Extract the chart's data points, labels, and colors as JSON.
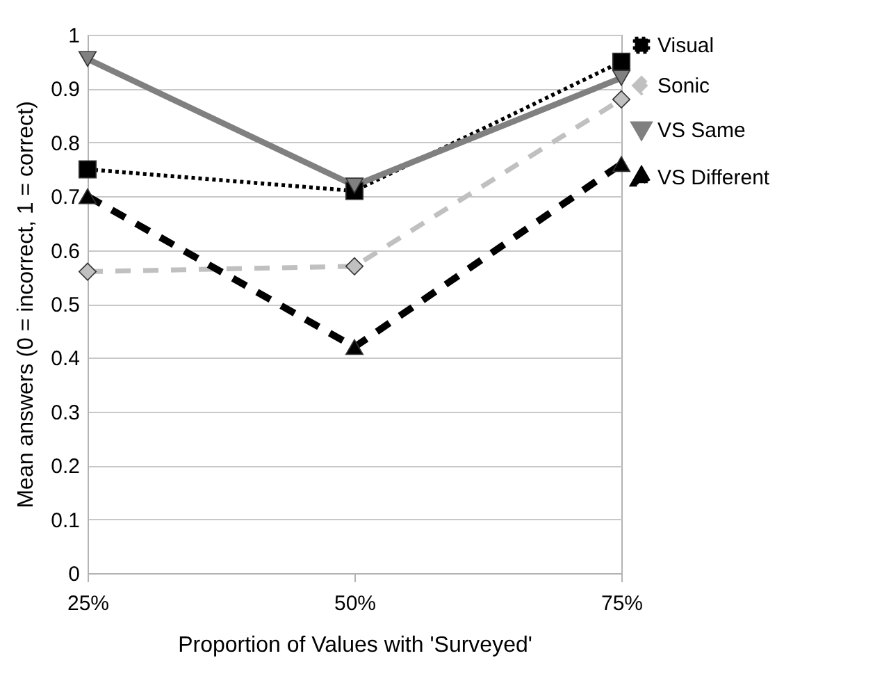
{
  "chart_data": {
    "type": "line",
    "xlabel": "Proportion of Values with 'Surveyed'",
    "ylabel": "Mean answers (0 = incorrect, 1 = correct)",
    "categories": [
      "25%",
      "50%",
      "75%"
    ],
    "series": [
      {
        "name": "Visual",
        "color": "#000000",
        "marker": "square",
        "line_style": "dotted",
        "values": [
          0.75,
          0.71,
          0.95
        ]
      },
      {
        "name": "Sonic",
        "color": "#c0c0c0",
        "marker": "diamond",
        "line_style": "dashed",
        "values": [
          0.56,
          0.57,
          0.88
        ]
      },
      {
        "name": "VS Same",
        "color": "#808080",
        "marker": "triangle-down",
        "line_style": "solid",
        "values": [
          0.955,
          0.72,
          0.92
        ]
      },
      {
        "name": "VS Different",
        "color": "#000000",
        "marker": "triangle",
        "line_style": "dashed",
        "values": [
          0.7,
          0.42,
          0.76
        ]
      }
    ],
    "ylim": [
      0,
      1
    ],
    "yticks": [
      0,
      0.1,
      0.2,
      0.3,
      0.4,
      0.5,
      0.6,
      0.7,
      0.8,
      0.9,
      1
    ],
    "grid": "y",
    "legend": "top right"
  }
}
